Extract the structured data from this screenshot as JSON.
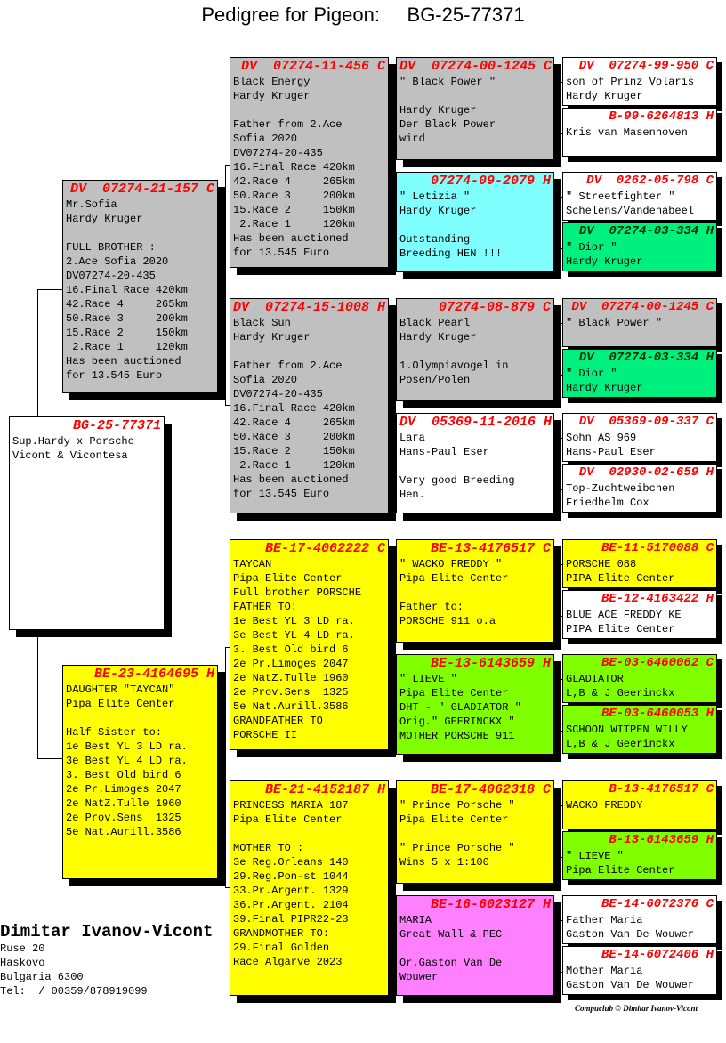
{
  "title": "Pedigree for Pigeon:     BG-25-77371",
  "colors": {
    "gray": "#c0c0c0",
    "cyan": "#80ffff",
    "green": "#00f080",
    "lime": "#80ff00",
    "yellow": "#ffff00",
    "magenta": "#ff80ff",
    "white": "#ffffff",
    "ring": "#ff0000"
  },
  "subject": {
    "ring": "BG-25-77371",
    "color": "white",
    "lines": [
      "Sup.Hardy x Porsche",
      "Vicont & Vicontesa"
    ]
  },
  "parents": [
    {
      "ring": "DV  07274-21-157 C",
      "color": "gray",
      "lines": [
        "Mr.Sofia",
        "Hardy Kruger",
        "",
        "FULL BROTHER :",
        "2.Ace Sofia 2020",
        "DV07274-20-435",
        "16.Final Race 420km",
        "42.Race 4     265km",
        "50.Race 3     200km",
        "15.Race 2     150km",
        " 2.Race 1     120km",
        "Has been auctioned",
        "for 13.545 Euro"
      ]
    },
    {
      "ring": "BE-23-4164695 H",
      "color": "yellow",
      "lines": [
        "DAUGHTER \"TAYCAN\"",
        "Pipa Elite Center",
        "",
        "Half Sister to:",
        "1e Best YL 3 LD ra.",
        "3e Best YL 4 LD ra.",
        "3. Best Old bird 6",
        "2e Pr.Limoges 2047",
        "2e NatZ.Tulle 1960",
        "2e Prov.Sens  1325",
        "5e Nat.Aurill.3586"
      ]
    }
  ],
  "grandparents": [
    {
      "ring": "DV  07274-11-456 C",
      "color": "gray",
      "lines": [
        "Black Energy",
        "Hardy Kruger",
        "",
        "Father from 2.Ace",
        "Sofia 2020",
        "DV07274-20-435",
        "16.Final Race 420km",
        "42.Race 4     265km",
        "50.Race 3     200km",
        "15.Race 2     150km",
        " 2.Race 1     120km",
        "Has been auctioned",
        "for 13.545 Euro"
      ]
    },
    {
      "ring": "DV  07274-15-1008 H",
      "color": "gray",
      "lines": [
        "Black Sun",
        "Hardy Kruger",
        "",
        "Father from 2.Ace",
        "Sofia 2020",
        "DV07274-20-435",
        "16.Final Race 420km",
        "42.Race 4     265km",
        "50.Race 3     200km",
        "15.Race 2     150km",
        " 2.Race 1     120km",
        "Has been auctioned",
        "for 13.545 Euro"
      ]
    },
    {
      "ring": "BE-17-4062222 C",
      "color": "yellow",
      "lines": [
        "TAYCAN",
        "Pipa Elite Center",
        "Full brother PORSCHE",
        "FATHER TO:",
        "1e Best YL 3 LD ra.",
        "3e Best YL 4 LD ra.",
        "3. Best Old bird 6",
        "2e Pr.Limoges 2047",
        "2e NatZ.Tulle 1960",
        "2e Prov.Sens  1325",
        "5e Nat.Aurill.3586",
        "GRANDFATHER TO",
        "PORSCHE II"
      ]
    },
    {
      "ring": "BE-21-4152187 H",
      "color": "yellow",
      "lines": [
        "PRINCESS MARIA 187",
        "Pipa Elite Center",
        "",
        "MOTHER TO :",
        "3e Reg.Orleans 140",
        "29.Reg.Pon-st 1044",
        "33.Pr.Argent. 1329",
        "36.Pr.Argent. 2104",
        "39.Final PIPR22-23",
        "GRANDMOTHER TO:",
        "29.Final Golden",
        "Race Algarve 2023"
      ]
    }
  ],
  "great_grandparents": [
    {
      "ring": "DV  07274-00-1245 C",
      "color": "gray",
      "lines": [
        "\" Black Power \"",
        "",
        "Hardy Kruger",
        "Der Black Power",
        "wird"
      ]
    },
    {
      "ring": "07274-09-2079 H",
      "color": "cyan",
      "lines": [
        "\" Letizia \"",
        "Hardy Kruger",
        "",
        "Outstanding",
        "Breeding HEN !!!"
      ]
    },
    {
      "ring": "07274-08-879 C",
      "color": "gray",
      "lines": [
        "Black Pearl",
        "Hardy Kruger",
        "",
        "1.Olympiavogel in",
        "Posen/Polen"
      ]
    },
    {
      "ring": "DV  05369-11-2016 H",
      "color": "white",
      "lines": [
        "Lara",
        "Hans-Paul Eser",
        "",
        "Very good Breeding",
        "Hen."
      ]
    },
    {
      "ring": "BE-13-4176517 C",
      "color": "yellow",
      "lines": [
        "\" WACKO FREDDY \"",
        "Pipa Elite Center",
        "",
        "Father to:",
        "PORSCHE 911 o.a"
      ]
    },
    {
      "ring": "BE-13-6143659 H",
      "color": "lime",
      "lines": [
        "\" LIEVE \"",
        "Pipa Elite Center",
        "DHT - \" GLADIATOR \"",
        "Orig.\" GEERINCKX \"",
        "MOTHER PORSCHE 911"
      ]
    },
    {
      "ring": "BE-17-4062318 C",
      "color": "yellow",
      "lines": [
        "\" Prince Porsche \"",
        "Pipa Elite Center",
        "",
        "\" Prince Porsche \"",
        "Wins 5 x 1:100"
      ]
    },
    {
      "ring": "BE-16-6023127 H",
      "color": "magenta",
      "lines": [
        "MARIA",
        "Great Wall & PEC",
        "",
        "Or.Gaston Van De",
        "Wouwer"
      ]
    }
  ],
  "gen4": [
    {
      "ring": "DV  07274-99-950 C",
      "color": "white",
      "lines": [
        "son of Prinz Volaris",
        "Hardy Kruger"
      ]
    },
    {
      "ring": "B-99-6264813 H",
      "color": "white",
      "lines": [
        "Kris van Masenhoven"
      ]
    },
    {
      "ring": "DV  0262-05-798 C",
      "color": "white",
      "lines": [
        "\" Streetfighter \"",
        "Schelens/Vandenabeel"
      ]
    },
    {
      "ring": "DV  07274-03-334 H",
      "color": "green",
      "dark": true,
      "lines": [
        "\" Dior \"",
        "Hardy Kruger"
      ]
    },
    {
      "ring": "DV  07274-00-1245 C",
      "color": "gray",
      "lines": [
        "\" Black Power \""
      ]
    },
    {
      "ring": "DV  07274-03-334 H",
      "color": "green",
      "dark": true,
      "lines": [
        "\" Dior \"",
        "Hardy Kruger"
      ]
    },
    {
      "ring": "DV  05369-09-337 C",
      "color": "white",
      "lines": [
        "Sohn AS 969",
        "Hans-Paul Eser"
      ]
    },
    {
      "ring": "DV  02930-02-659 H",
      "color": "white",
      "lines": [
        "Top-Zuchtweibchen",
        "Friedhelm Cox"
      ]
    },
    {
      "ring": "BE-11-5170088 C",
      "color": "yellow",
      "lines": [
        "PORSCHE 088",
        "PIPA Elite Center"
      ]
    },
    {
      "ring": "BE-12-4163422 H",
      "color": "white",
      "lines": [
        "BLUE ACE FREDDY'KE",
        "PIPA Elite Center"
      ]
    },
    {
      "ring": "BE-03-6460062 C",
      "color": "lime",
      "lines": [
        "GLADIATOR",
        "L,B & J Geerinckx"
      ]
    },
    {
      "ring": "BE-03-6460053 H",
      "color": "lime",
      "lines": [
        "SCHOON WITPEN WILLY",
        "L,B & J Geerinckx"
      ]
    },
    {
      "ring": "B-13-4176517 C",
      "color": "yellow",
      "lines": [
        "WACKO FREDDY"
      ]
    },
    {
      "ring": "B-13-6143659 H",
      "color": "lime",
      "lines": [
        "\" LIEVE \"",
        "Pipa Elite Center"
      ]
    },
    {
      "ring": "BE-14-6072376 C",
      "color": "white",
      "lines": [
        "Father Maria",
        "Gaston Van De Wouwer"
      ]
    },
    {
      "ring": "BE-14-6072406 H",
      "color": "white",
      "lines": [
        "Mother Maria",
        "Gaston Van De Wouwer"
      ]
    }
  ],
  "owner": {
    "name": "Dimitar Ivanov-Vicont",
    "address": [
      "Ruse 20",
      "Haskovo",
      "Bulgaria 6300",
      "Tel:  / 00359/878919099"
    ]
  },
  "copyright": "Compuclub © Dimitar Ivanov-Vicont"
}
